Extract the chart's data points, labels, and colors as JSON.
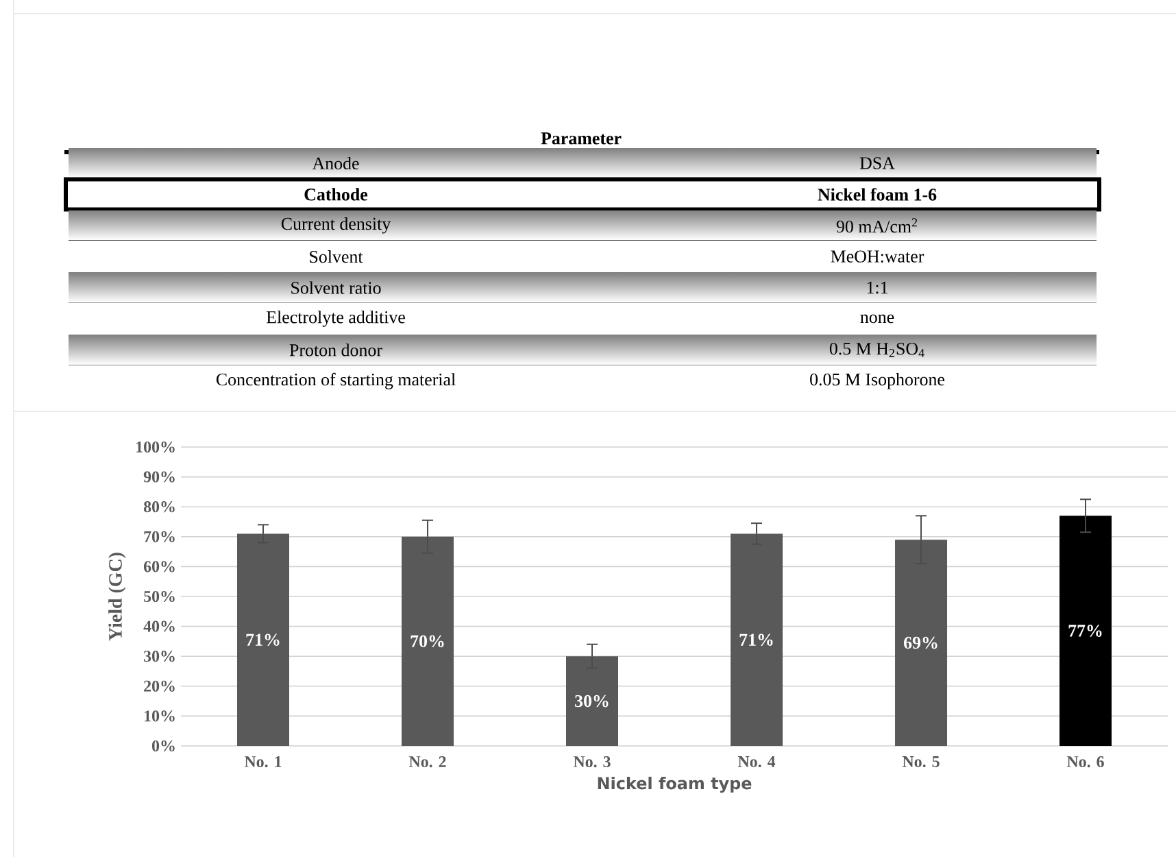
{
  "chart_data": [
    {
      "type": "other",
      "title": "Parameter",
      "annotations": [
        "Anode",
        "DSA",
        "Cathode",
        "Nickel foam 1-6",
        "Current density",
        "90 mA/cm$^{2}$",
        "Solvent",
        "MeOH:water",
        "Solvent ratio",
        "1:1",
        "Electrolyte additive",
        "none",
        "Proton donor",
        "0.5 M H$_{2}$SO$_{4}$",
        "Concentration of starting material",
        "0.05 M Isophorone"
      ]
    },
    {
      "type": "bar",
      "categories": [
        "No. 1",
        "No. 2",
        "No. 3",
        "No. 4",
        "No. 5",
        "No. 6"
      ],
      "values": [
        71,
        70,
        30,
        71,
        69,
        77
      ],
      "value_labels": [
        "71%",
        "70%",
        "30%",
        "71%",
        "69%",
        "77%"
      ],
      "errors": [
        3,
        5.5,
        4,
        3.5,
        8,
        5.5
      ],
      "colors": [
        "#595959",
        "#595959",
        "#595959",
        "#595959",
        "#595959",
        "#000000"
      ],
      "xlabel": "Nickel foam type",
      "ylabel": "Yield (GC)",
      "ylim": [
        0,
        100
      ],
      "yticks": [
        {
          "value": 0,
          "label": "0%"
        },
        {
          "value": 10,
          "label": "10%"
        },
        {
          "value": 20,
          "label": "20%"
        },
        {
          "value": 30,
          "label": "30%"
        },
        {
          "value": 40,
          "label": "40%"
        },
        {
          "value": 50,
          "label": "50%"
        },
        {
          "value": 60,
          "label": "60%"
        },
        {
          "value": 70,
          "label": "70%"
        },
        {
          "value": 80,
          "label": "80%"
        },
        {
          "value": 90,
          "label": "90%"
        },
        {
          "value": 100,
          "label": "100%"
        }
      ],
      "grid": "y"
    }
  ]
}
